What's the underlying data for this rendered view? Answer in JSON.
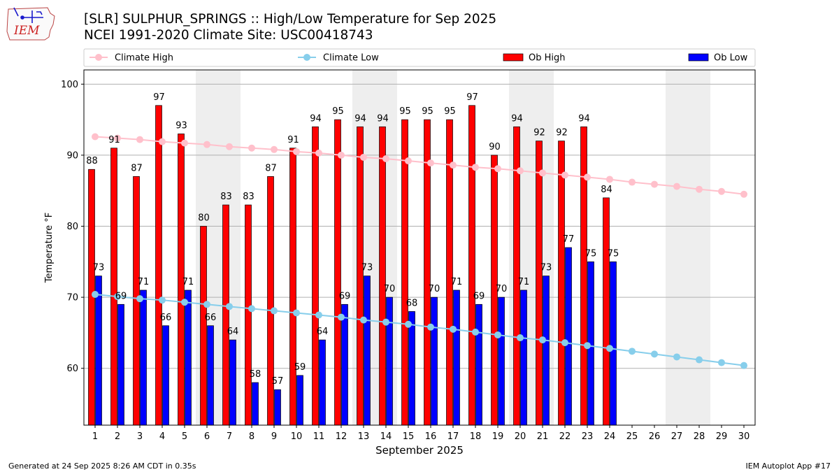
{
  "header": {
    "title_line1": "[SLR] SULPHUR_SPRINGS :: High/Low Temperature for Sep 2025",
    "title_line2": "NCEI 1991-2020 Climate Site: USC00418743"
  },
  "logo": {
    "text": "IEM"
  },
  "footer": {
    "generated": "Generated at 24 Sep 2025 8:26 AM CDT in 0.35s",
    "app": "IEM Autoplot App #17"
  },
  "chart_data": {
    "type": "bar",
    "title": "[SLR] SULPHUR_SPRINGS :: High/Low Temperature for Sep 2025",
    "xlabel": "September 2025",
    "ylabel": "Temperature °F",
    "ylim": [
      52,
      102
    ],
    "yticks": [
      60,
      70,
      80,
      90,
      100
    ],
    "grid": true,
    "legend_position": "top",
    "days": [
      1,
      2,
      3,
      4,
      5,
      6,
      7,
      8,
      9,
      10,
      11,
      12,
      13,
      14,
      15,
      16,
      17,
      18,
      19,
      20,
      21,
      22,
      23,
      24,
      25,
      26,
      27,
      28,
      29,
      30
    ],
    "weekend_bands": [
      [
        6,
        7
      ],
      [
        13,
        14
      ],
      [
        20,
        21
      ],
      [
        27,
        28
      ]
    ],
    "series": [
      {
        "name": "Ob High",
        "kind": "bar",
        "color": "#ff0000",
        "values": [
          88,
          91,
          87,
          97,
          93,
          80,
          83,
          83,
          87,
          91,
          94,
          95,
          94,
          94,
          95,
          95,
          95,
          97,
          90,
          94,
          92,
          92,
          94,
          84
        ]
      },
      {
        "name": "Ob Low",
        "kind": "bar",
        "color": "#0000ff",
        "values": [
          73,
          69,
          71,
          66,
          71,
          66,
          64,
          58,
          57,
          59,
          64,
          69,
          73,
          70,
          68,
          70,
          71,
          69,
          70,
          71,
          73,
          77,
          75,
          75
        ]
      },
      {
        "name": "Climate High",
        "kind": "line",
        "color": "#ffc0cb",
        "values": [
          92.6,
          92.4,
          92.2,
          91.9,
          91.7,
          91.5,
          91.2,
          91.0,
          90.8,
          90.5,
          90.3,
          90.0,
          89.7,
          89.5,
          89.2,
          88.9,
          88.6,
          88.3,
          88.1,
          87.8,
          87.5,
          87.2,
          86.9,
          86.6,
          86.2,
          85.9,
          85.6,
          85.2,
          84.9,
          84.5
        ]
      },
      {
        "name": "Climate Low",
        "kind": "line",
        "color": "#87ceeb",
        "values": [
          70.4,
          70.1,
          69.8,
          69.6,
          69.3,
          69.0,
          68.7,
          68.4,
          68.1,
          67.8,
          67.5,
          67.2,
          66.8,
          66.5,
          66.2,
          65.8,
          65.5,
          65.1,
          64.7,
          64.3,
          64.0,
          63.6,
          63.2,
          62.8,
          62.4,
          62.0,
          61.6,
          61.2,
          60.8,
          60.4
        ]
      }
    ],
    "legend": [
      "Climate High",
      "Climate Low",
      "Ob High",
      "Ob Low"
    ]
  }
}
